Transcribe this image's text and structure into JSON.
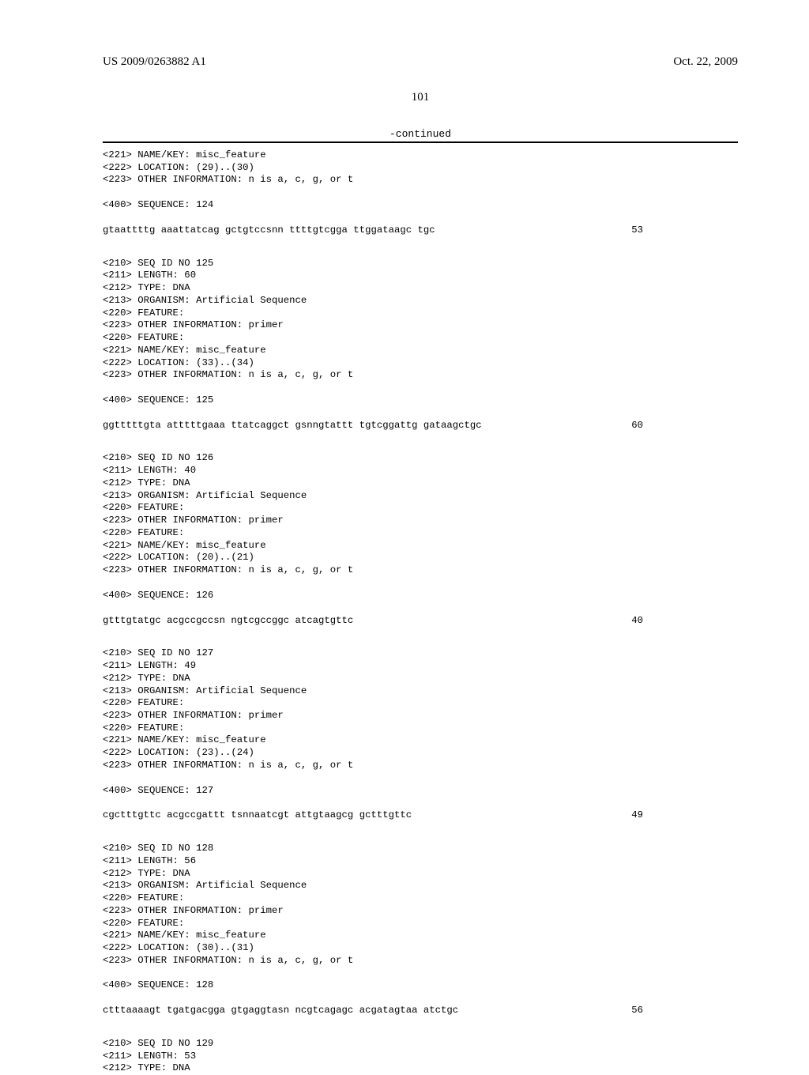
{
  "header": {
    "publication_number": "US 2009/0263882 A1",
    "publication_date": "Oct. 22, 2009",
    "page_number": "101",
    "continued_label": "-continued"
  },
  "entries": [
    {
      "pre": [
        "<221> NAME/KEY: misc_feature",
        "<222> LOCATION: (29)..(30)",
        "<223> OTHER INFORMATION: n is a, c, g, or t"
      ],
      "seq_label": "<400> SEQUENCE: 124",
      "sequence": "gtaattttg aaattatcag gctgtccsnn ttttgtcgga ttggataagc tgc",
      "length_num": "53"
    },
    {
      "pre": [
        "<210> SEQ ID NO 125",
        "<211> LENGTH: 60",
        "<212> TYPE: DNA",
        "<213> ORGANISM: Artificial Sequence",
        "<220> FEATURE:",
        "<223> OTHER INFORMATION: primer",
        "<220> FEATURE:",
        "<221> NAME/KEY: misc_feature",
        "<222> LOCATION: (33)..(34)",
        "<223> OTHER INFORMATION: n is a, c, g, or t"
      ],
      "seq_label": "<400> SEQUENCE: 125",
      "sequence": "ggtttttgta atttttgaaa ttatcaggct gsnngtattt tgtcggattg gataagctgc",
      "length_num": "60"
    },
    {
      "pre": [
        "<210> SEQ ID NO 126",
        "<211> LENGTH: 40",
        "<212> TYPE: DNA",
        "<213> ORGANISM: Artificial Sequence",
        "<220> FEATURE:",
        "<223> OTHER INFORMATION: primer",
        "<220> FEATURE:",
        "<221> NAME/KEY: misc_feature",
        "<222> LOCATION: (20)..(21)",
        "<223> OTHER INFORMATION: n is a, c, g, or t"
      ],
      "seq_label": "<400> SEQUENCE: 126",
      "sequence": "gtttgtatgc acgccgccsn ngtcgccggc atcagtgttc",
      "length_num": "40"
    },
    {
      "pre": [
        "<210> SEQ ID NO 127",
        "<211> LENGTH: 49",
        "<212> TYPE: DNA",
        "<213> ORGANISM: Artificial Sequence",
        "<220> FEATURE:",
        "<223> OTHER INFORMATION: primer",
        "<220> FEATURE:",
        "<221> NAME/KEY: misc_feature",
        "<222> LOCATION: (23)..(24)",
        "<223> OTHER INFORMATION: n is a, c, g, or t"
      ],
      "seq_label": "<400> SEQUENCE: 127",
      "sequence": "cgctttgttc acgccgattt tsnnaatcgt attgtaagcg gctttgttc",
      "length_num": "49"
    },
    {
      "pre": [
        "<210> SEQ ID NO 128",
        "<211> LENGTH: 56",
        "<212> TYPE: DNA",
        "<213> ORGANISM: Artificial Sequence",
        "<220> FEATURE:",
        "<223> OTHER INFORMATION: primer",
        "<220> FEATURE:",
        "<221> NAME/KEY: misc_feature",
        "<222> LOCATION: (30)..(31)",
        "<223> OTHER INFORMATION: n is a, c, g, or t"
      ],
      "seq_label": "<400> SEQUENCE: 128",
      "sequence": "ctttaaaagt tgatgacgga gtgaggtasn ncgtcagagc acgatagtaa atctgc",
      "length_num": "56"
    },
    {
      "pre": [
        "<210> SEQ ID NO 129",
        "<211> LENGTH: 53",
        "<212> TYPE: DNA"
      ],
      "seq_label": "",
      "sequence": "",
      "length_num": ""
    }
  ]
}
